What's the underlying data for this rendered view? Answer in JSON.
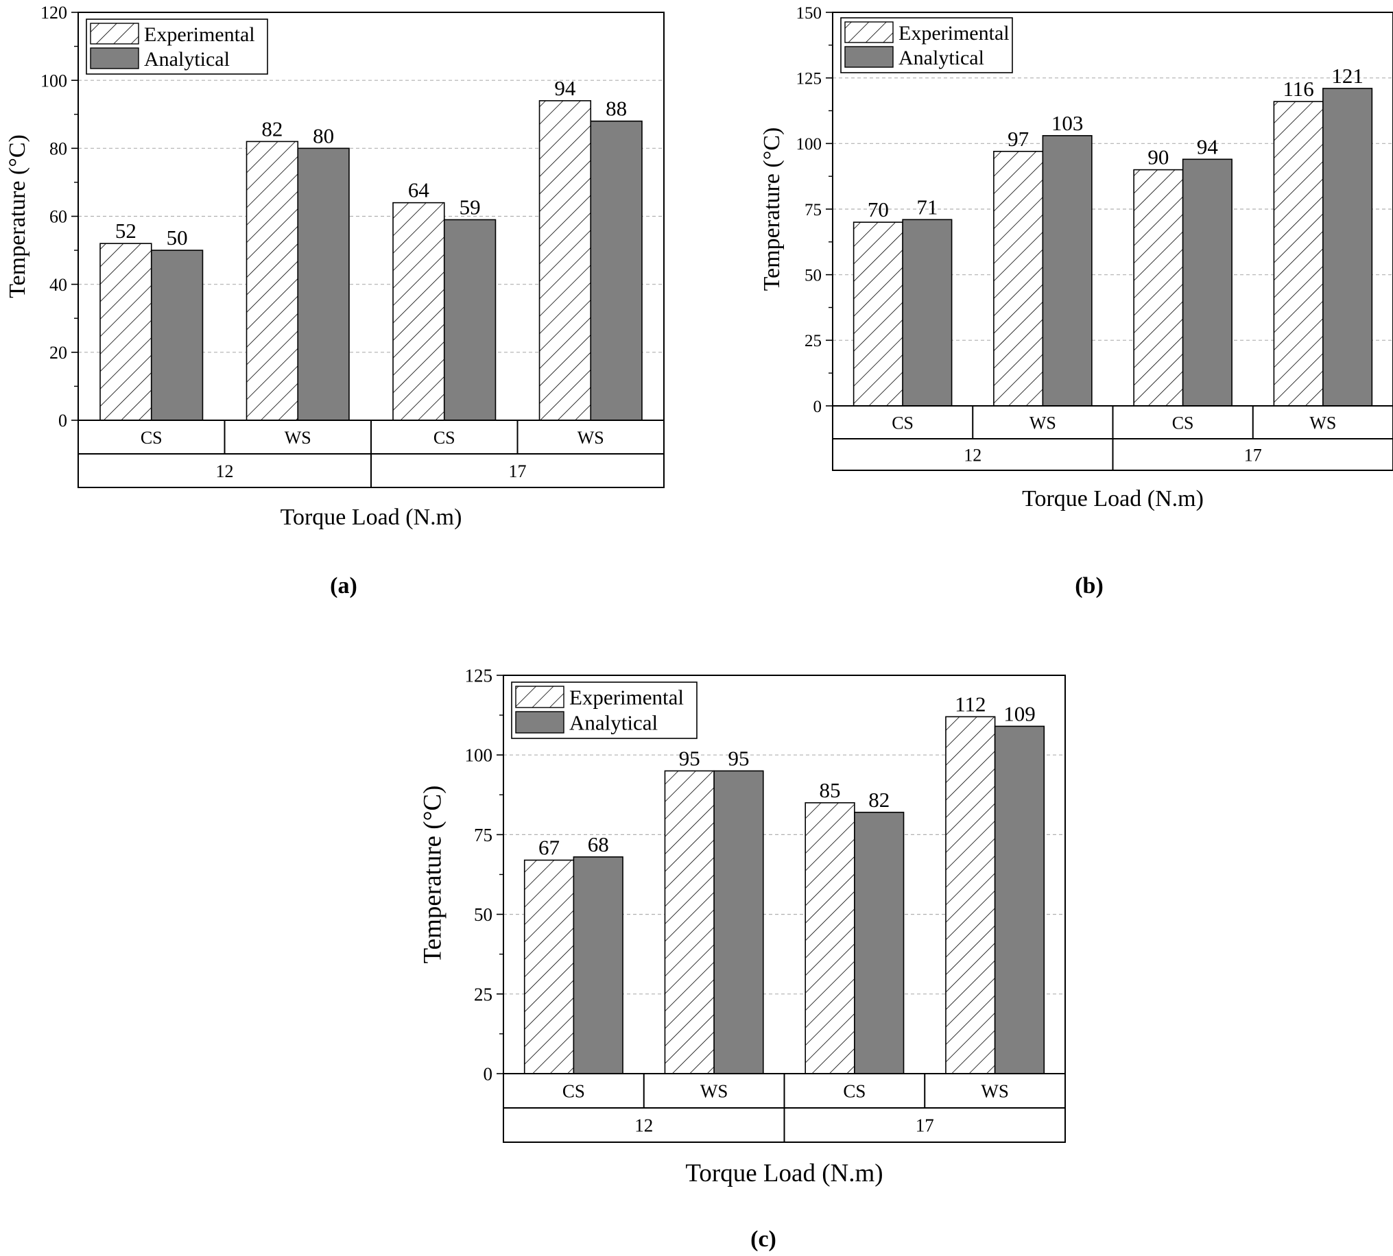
{
  "figure": {
    "series_names": [
      "Experimental",
      "Analytical"
    ],
    "colors": {
      "analytical_fill": "#808080",
      "grid": "#b0b0b0",
      "axis": "#000000"
    },
    "panel_labels": [
      "(a)",
      "(b)",
      "(c)"
    ]
  },
  "chart_data": [
    {
      "type": "bar",
      "panel": "(a)",
      "ylabel": "Temperature (°C)",
      "xlabel": "Torque Load (N.m)",
      "categories": [
        "CS",
        "WS",
        "CS",
        "WS"
      ],
      "groups": [
        "12",
        "17"
      ],
      "ylim": [
        0,
        120
      ],
      "yticks": [
        0,
        20,
        40,
        60,
        80,
        100,
        120
      ],
      "grid": true,
      "legend_position": "top-left",
      "series": [
        {
          "name": "Experimental",
          "values": [
            52,
            82,
            64,
            94
          ],
          "labels": [
            "52",
            "82",
            "64",
            "94"
          ],
          "pattern": "hatch"
        },
        {
          "name": "Analytical",
          "values": [
            50,
            80,
            59,
            88
          ],
          "labels": [
            "50",
            "80",
            "59",
            "88"
          ],
          "pattern": "solid"
        }
      ]
    },
    {
      "type": "bar",
      "panel": "(b)",
      "ylabel": "Temperature (°C)",
      "xlabel": "Torque Load (N.m)",
      "categories": [
        "CS",
        "WS",
        "CS",
        "WS"
      ],
      "groups": [
        "12",
        "17"
      ],
      "ylim": [
        0,
        150
      ],
      "yticks": [
        0,
        25,
        50,
        75,
        100,
        125,
        150
      ],
      "grid": true,
      "legend_position": "top-left",
      "series": [
        {
          "name": "Experimental",
          "values": [
            70,
            97,
            90,
            116
          ],
          "labels": [
            "70",
            "97",
            "90",
            "116"
          ],
          "pattern": "hatch"
        },
        {
          "name": "Analytical",
          "values": [
            71,
            103,
            94,
            121
          ],
          "labels": [
            "71",
            "103",
            "94",
            "121"
          ],
          "pattern": "solid"
        }
      ]
    },
    {
      "type": "bar",
      "panel": "(c)",
      "ylabel": "Temperature (°C)",
      "xlabel": "Torque Load (N.m)",
      "categories": [
        "CS",
        "WS",
        "CS",
        "WS"
      ],
      "groups": [
        "12",
        "17"
      ],
      "ylim": [
        0,
        125
      ],
      "yticks": [
        0,
        25,
        50,
        75,
        100,
        125
      ],
      "grid": true,
      "legend_position": "top-left",
      "series": [
        {
          "name": "Experimental",
          "values": [
            67,
            95,
            85,
            112
          ],
          "labels": [
            "67",
            "95",
            "85",
            "112"
          ],
          "pattern": "hatch"
        },
        {
          "name": "Analytical",
          "values": [
            68,
            95,
            82,
            109
          ],
          "labels": [
            "68",
            "95",
            "82",
            "109"
          ],
          "pattern": "solid"
        }
      ]
    }
  ]
}
